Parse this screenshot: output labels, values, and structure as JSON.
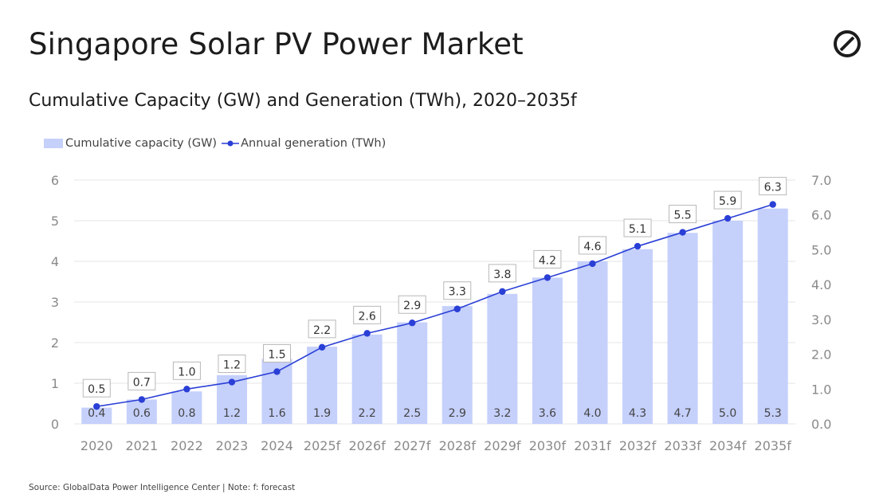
{
  "header": {
    "title": "Singapore Solar PV Power Market",
    "subtitle": "Cumulative Capacity (GW) and Generation (TWh), 2020–2035f"
  },
  "logo": {
    "icon": "globaldata-logo-icon"
  },
  "legend": {
    "capacity_label": "Cumulative capacity (GW)",
    "generation_label": "Annual generation (TWh)"
  },
  "footer": {
    "source": "Source: GlobalData Power Intelligence Center | Note: f: forecast"
  },
  "colors": {
    "bar": "#c5d0fb",
    "line": "#2a3fd6",
    "grid": "#e6e6e6",
    "axis_text": "#8a8a8a"
  },
  "chart_data": {
    "type": "bar+line",
    "categories": [
      "2020",
      "2021",
      "2022",
      "2023",
      "2024",
      "2025f",
      "2026f",
      "2027f",
      "2028f",
      "2029f",
      "2030f",
      "2031f",
      "2032f",
      "2033f",
      "2034f",
      "2035f"
    ],
    "series": [
      {
        "name": "Cumulative capacity (GW)",
        "type": "bar",
        "axis": "left",
        "values": [
          0.4,
          0.6,
          0.8,
          1.2,
          1.6,
          1.9,
          2.2,
          2.5,
          2.9,
          3.2,
          3.6,
          4.0,
          4.3,
          4.7,
          5.0,
          5.3
        ],
        "labels": [
          "0.4",
          "0.6",
          "0.8",
          "1.2",
          "1.6",
          "1.9",
          "2.2",
          "2.5",
          "2.9",
          "3.2",
          "3.6",
          "4.0",
          "4.3",
          "4.7",
          "5.0",
          "5.3"
        ]
      },
      {
        "name": "Annual generation (TWh)",
        "type": "line",
        "axis": "right",
        "values": [
          0.5,
          0.7,
          1.0,
          1.2,
          1.5,
          2.2,
          2.6,
          2.9,
          3.3,
          3.8,
          4.2,
          4.6,
          5.1,
          5.5,
          5.9,
          6.3
        ],
        "labels": [
          "0.5",
          "0.7",
          "1.0",
          "1.2",
          "1.5",
          "2.2",
          "2.6",
          "2.9",
          "3.3",
          "3.8",
          "4.2",
          "4.6",
          "5.1",
          "5.5",
          "5.9",
          "6.3"
        ]
      }
    ],
    "y_left": {
      "range": [
        0,
        6
      ],
      "ticks": [
        "0",
        "1",
        "2",
        "3",
        "4",
        "5",
        "6"
      ]
    },
    "y_right": {
      "range": [
        0,
        7
      ],
      "ticks": [
        "0.0",
        "1.0",
        "2.0",
        "3.0",
        "4.0",
        "5.0",
        "6.0",
        "7.0"
      ]
    },
    "grid": true,
    "legend_position": "top-left"
  }
}
